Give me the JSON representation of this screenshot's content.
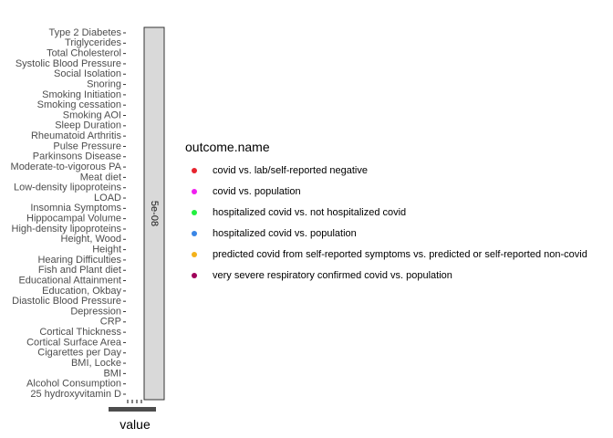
{
  "chart_data": {
    "type": "scatter",
    "title": "",
    "xlabel": "value",
    "ylabel": "",
    "facet_label": "5e-08",
    "categories": [
      "25 hydroxyvitamin D",
      "Alcohol Consumption",
      "BMI",
      "BMI, Locke",
      "Cigarettes per Day",
      "Cortical Surface Area",
      "Cortical Thickness",
      "CRP",
      "Depression",
      "Diastolic Blood Pressure",
      "Education, Okbay",
      "Educational Attainment",
      "Fish and Plant diet",
      "Hearing Difficulties",
      "Height",
      "Height, Wood",
      "High-density lipoproteins",
      "Hippocampal Volume",
      "Insomnia Symptoms",
      "LOAD",
      "Low-density lipoproteins",
      "Meat diet",
      "Moderate-to-vigorous PA",
      "Parkinsons Disease",
      "Pulse Pressure",
      "Rheumatoid Arthritis",
      "Sleep Duration",
      "Smoking AOI",
      "Smoking cessation",
      "Smoking Initiation",
      "Snoring",
      "Social Isolation",
      "Systolic Blood Pressure",
      "Total Cholesterol",
      "Triglycerides",
      "Type 2 Diabetes"
    ],
    "legend": {
      "title": "outcome.name",
      "placement": "right",
      "entries": [
        {
          "label": "covid vs. lab/self-reported negative",
          "color": "#E7242E"
        },
        {
          "label": "covid vs. population",
          "color": "#F01FF0"
        },
        {
          "label": "hospitalized covid vs. not hospitalized covid",
          "color": "#22F040"
        },
        {
          "label": "hospitalized covid vs. population",
          "color": "#3A86E6"
        },
        {
          "label": "predicted covid from self-reported symptoms vs. predicted or self-reported non-covid",
          "color": "#F4B21A"
        },
        {
          "label": "very severe respiratory confirmed covid vs. population",
          "color": "#A0005A"
        }
      ]
    },
    "series": [],
    "grid": false,
    "x_tick_count": 4
  }
}
